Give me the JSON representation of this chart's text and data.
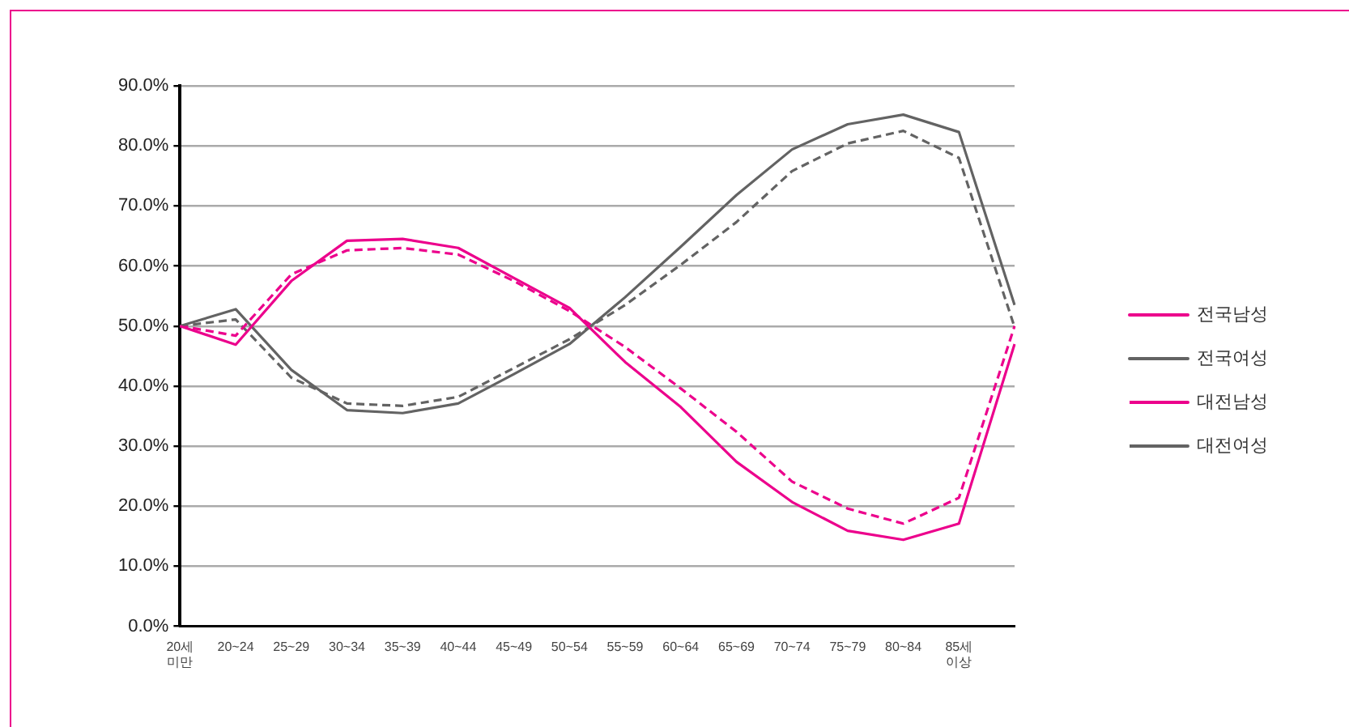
{
  "chart_data": {
    "type": "line",
    "categories": [
      "20세 미만",
      "20~24",
      "25~29",
      "30~34",
      "35~39",
      "40~44",
      "45~49",
      "50~54",
      "55~59",
      "60~64",
      "65~69",
      "70~74",
      "75~79",
      "80~84",
      "85세 이상",
      null
    ],
    "series": [
      {
        "name": "전국남성",
        "color": "#ec008c",
        "line_style": "solid",
        "values": [
          50,
          46.9,
          57.5,
          64.2,
          64.5,
          63.0,
          58,
          53.0,
          44,
          36.5,
          27.4,
          20.7,
          15.9,
          14.4,
          17.1,
          47.0
        ]
      },
      {
        "name": "전국여성",
        "color": "#636363",
        "line_style": "solid",
        "values": [
          50,
          52.8,
          42.7,
          36.0,
          35.5,
          37.1,
          42,
          47.0,
          54.8,
          63.2,
          71.8,
          79.4,
          83.6,
          85.2,
          82.3,
          53.5
        ]
      },
      {
        "name": "대전남성",
        "color": "#ec008c",
        "line_style": "dashed",
        "values": [
          50,
          48.4,
          58.6,
          62.6,
          63.0,
          61.9,
          57.5,
          52.5,
          46.5,
          39.6,
          32.4,
          24.1,
          19.6,
          17.1,
          21.4,
          50
        ]
      },
      {
        "name": "대전여성",
        "color": "#636363",
        "line_style": "dashed",
        "values": [
          50,
          51.1,
          41.4,
          37.1,
          36.7,
          38.2,
          43,
          47.8,
          53.5,
          60.2,
          67.3,
          75.8,
          80.4,
          82.5,
          78.0,
          49.8
        ]
      }
    ],
    "ylim": [
      0,
      90
    ],
    "yticks": [
      {
        "value": 0,
        "label": "0.0%"
      },
      {
        "value": 10,
        "label": "10.0%"
      },
      {
        "value": 20,
        "label": "20.0%"
      },
      {
        "value": 30,
        "label": "30.0%"
      },
      {
        "value": 40,
        "label": "40.0%"
      },
      {
        "value": 50,
        "label": "50.0%"
      },
      {
        "value": 60,
        "label": "60.0%"
      },
      {
        "value": 70,
        "label": "70.0%"
      },
      {
        "value": 80,
        "label": "80.0%"
      },
      {
        "value": 90,
        "label": "90.0%"
      }
    ],
    "grid": "y",
    "legend": "right",
    "marker": "none"
  }
}
